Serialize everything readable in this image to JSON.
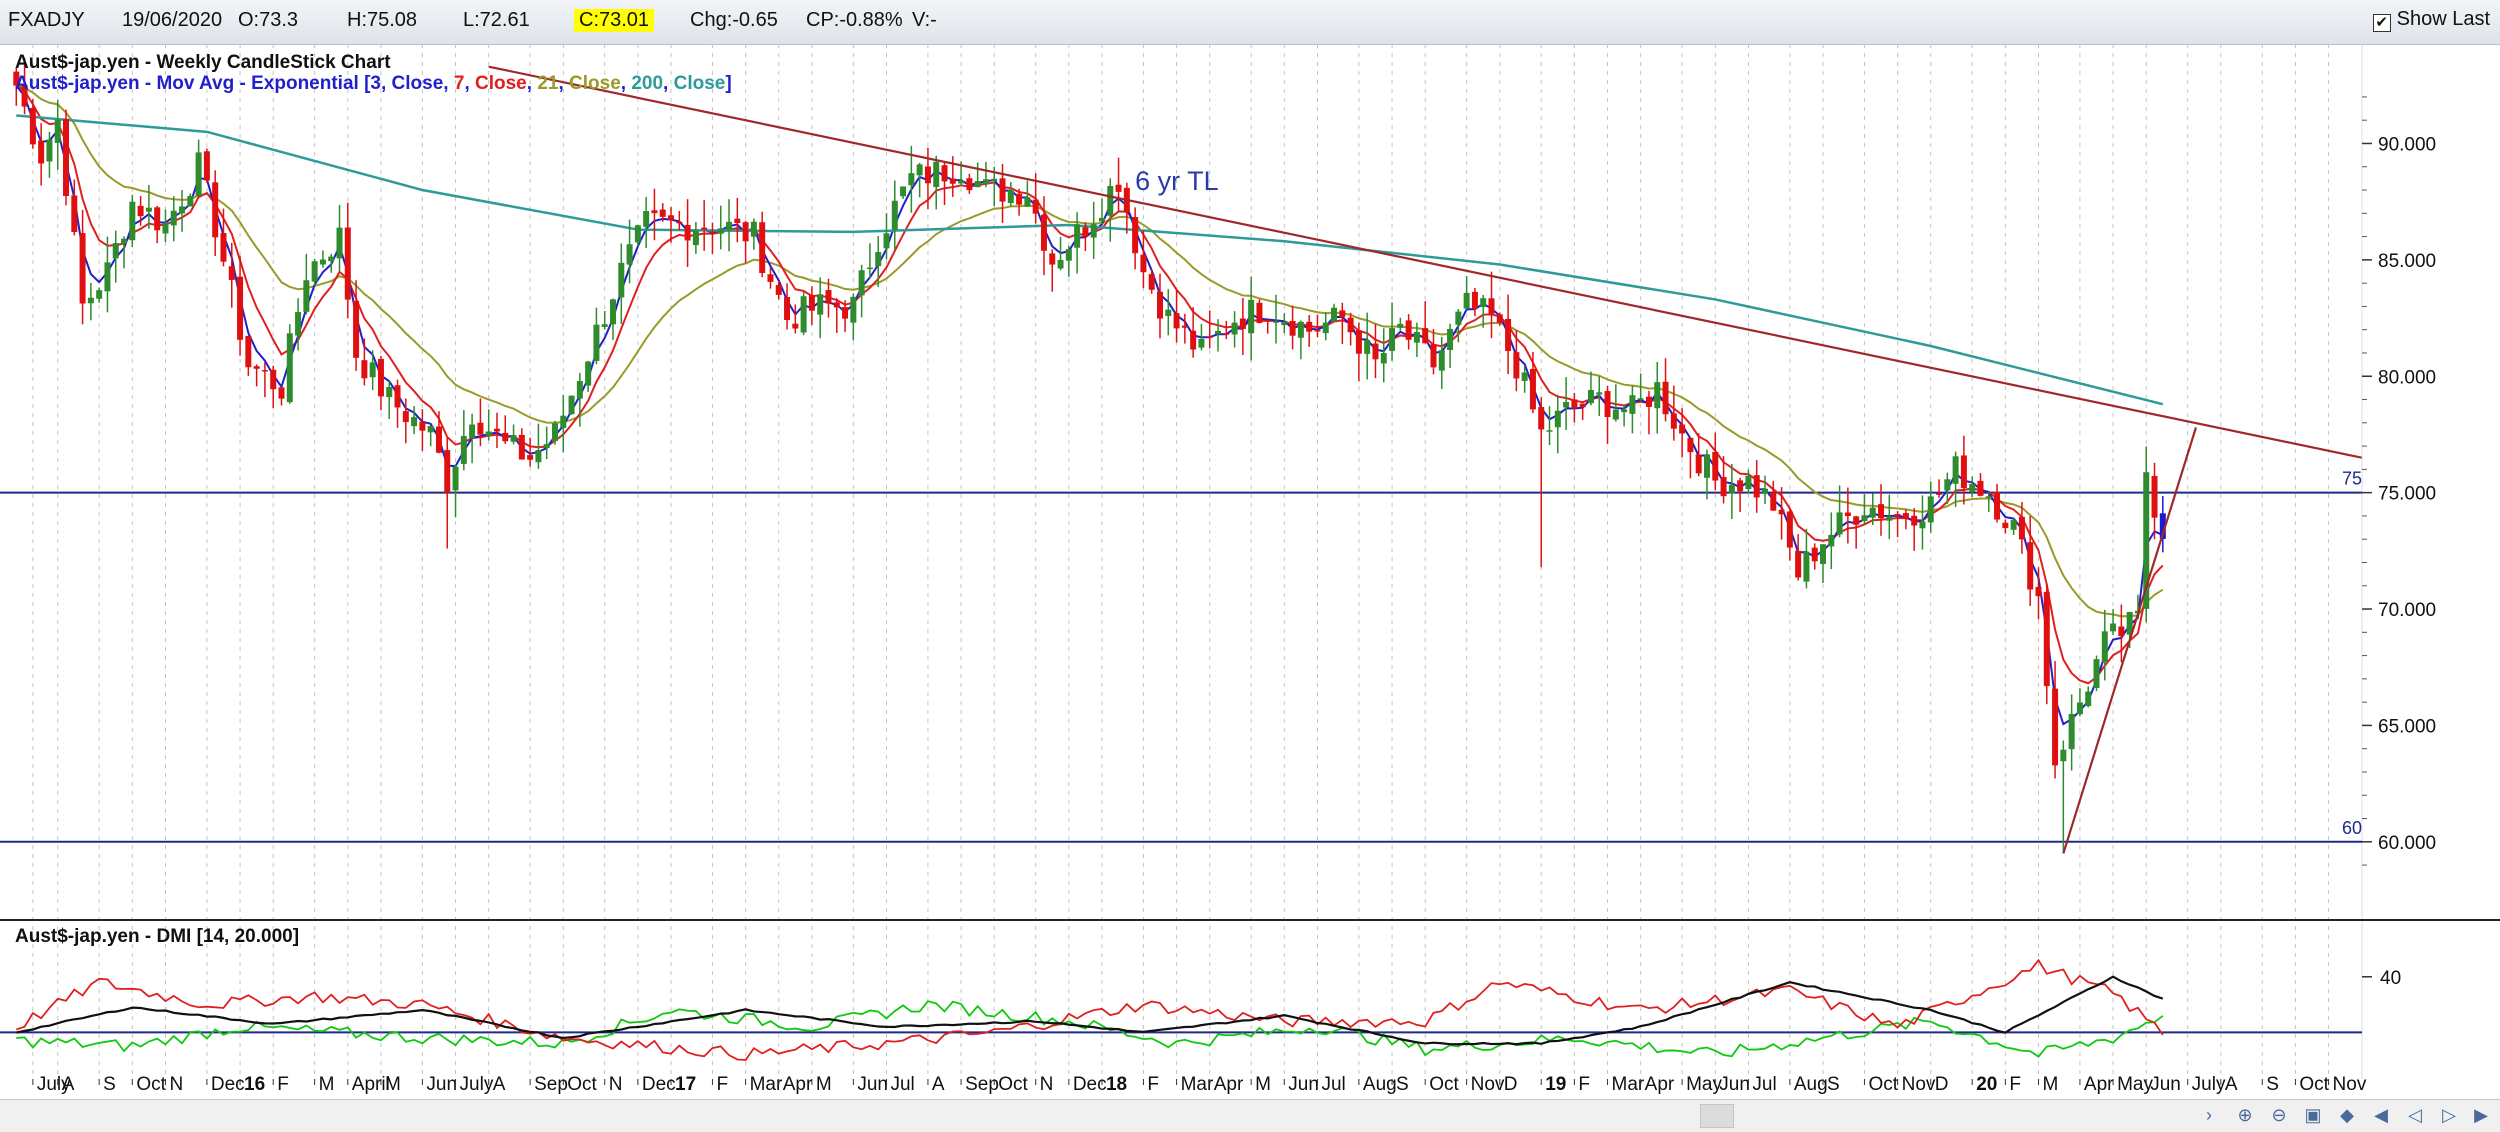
{
  "toolbar": {
    "symbol": "FXADJY",
    "date": "19/06/2020",
    "open": "O:73.3",
    "high": "H:75.08",
    "low": "L:72.61",
    "close": "C:73.01",
    "change": "Chg:-0.65",
    "change_pct": "CP:-0.88%",
    "volume": "V:-",
    "show_last": "Show Last",
    "show_last_checked": true
  },
  "colors": {
    "up_candle": "#2e8b2e",
    "down_candle": "#e01010",
    "last_candle": "#1a1ad0",
    "ema3": "#1f1fcc",
    "ema7": "#e02020",
    "ema21": "#9a9a2a",
    "ema200": "#2e9a9a",
    "trendline": "#a0282a",
    "hline": "#1f2a8a",
    "dmi_plus": "#10c810",
    "dmi_minus": "#e02020",
    "adx": "#111111"
  },
  "chart_data": [
    {
      "type": "candlestick",
      "title": "Aust$-jap.yen - Weekly CandleStick Chart",
      "legend": {
        "prefix": "Aust$-jap.yen - Mov Avg - Exponential [",
        "items": [
          {
            "text": "3",
            "color": "#1f1fcc"
          },
          {
            "text": ", ",
            "color": "#1f1fcc"
          },
          {
            "text": "Close",
            "color": "#1f1fcc"
          },
          {
            "text": ", ",
            "color": "#1f1fcc"
          },
          {
            "text": "7",
            "color": "#e02020"
          },
          {
            "text": ", ",
            "color": "#1f1fcc"
          },
          {
            "text": "Close",
            "color": "#e02020"
          },
          {
            "text": ", ",
            "color": "#1f1fcc"
          },
          {
            "text": "21",
            "color": "#9a9a2a"
          },
          {
            "text": ", ",
            "color": "#1f1fcc"
          },
          {
            "text": "Close",
            "color": "#9a9a2a"
          },
          {
            "text": ", ",
            "color": "#1f1fcc"
          },
          {
            "text": "200",
            "color": "#2e9a9a"
          },
          {
            "text": ", ",
            "color": "#1f1fcc"
          },
          {
            "text": "Close",
            "color": "#2e9a9a"
          },
          {
            "text": "]",
            "color": "#1f1fcc"
          }
        ]
      },
      "ylim": [
        57.5,
        93.5
      ],
      "yticks": [
        "90.000",
        "85.000",
        "80.000",
        "75.000",
        "70.000",
        "65.000",
        "60.000"
      ],
      "ytick_values": [
        90,
        85,
        80,
        75,
        70,
        65,
        60
      ],
      "grid": true,
      "horizontal_lines": [
        {
          "value": 75,
          "label": "75"
        },
        {
          "value": 60,
          "label": "60"
        }
      ],
      "annotation": "6 yr TL",
      "price_path": [
        [
          "2015-06-29",
          92.5
        ],
        [
          "2015-07-20",
          89.5
        ],
        [
          "2015-08-03",
          91.0
        ],
        [
          "2015-08-24",
          83.0
        ],
        [
          "2015-09-14",
          84.5
        ],
        [
          "2015-10-05",
          87.5
        ],
        [
          "2015-11-02",
          86.5
        ],
        [
          "2015-11-30",
          89.0
        ],
        [
          "2015-12-14",
          86.5
        ],
        [
          "2016-01-11",
          80.5
        ],
        [
          "2016-02-08",
          79.5
        ],
        [
          "2016-02-29",
          84.5
        ],
        [
          "2016-03-28",
          86.0
        ],
        [
          "2016-04-11",
          81.0
        ],
        [
          "2016-05-09",
          79.0
        ],
        [
          "2016-06-13",
          77.5
        ],
        [
          "2016-06-27",
          75.5
        ],
        [
          "2016-07-18",
          78.5
        ],
        [
          "2016-08-15",
          77.0
        ],
        [
          "2016-09-05",
          76.5
        ],
        [
          "2016-09-26",
          77.5
        ],
        [
          "2016-10-24",
          81.0
        ],
        [
          "2016-11-21",
          84.5
        ],
        [
          "2016-12-12",
          86.5
        ],
        [
          "2017-01-16",
          86.5
        ],
        [
          "2017-02-13",
          86.5
        ],
        [
          "2017-03-13",
          86.0
        ],
        [
          "2017-04-10",
          82.5
        ],
        [
          "2017-05-08",
          83.0
        ],
        [
          "2017-06-05",
          83.0
        ],
        [
          "2017-06-26",
          86.0
        ],
        [
          "2017-07-24",
          88.5
        ],
        [
          "2017-09-04",
          89.0
        ],
        [
          "2017-09-25",
          88.0
        ],
        [
          "2017-10-30",
          88.0
        ],
        [
          "2017-11-20",
          85.0
        ],
        [
          "2017-12-18",
          86.5
        ],
        [
          "2018-01-15",
          88.5
        ],
        [
          "2018-02-05",
          84.5
        ],
        [
          "2018-02-26",
          82.5
        ],
        [
          "2018-03-26",
          81.0
        ],
        [
          "2018-04-23",
          82.5
        ],
        [
          "2018-05-21",
          83.0
        ],
        [
          "2018-06-25",
          82.0
        ],
        [
          "2018-07-23",
          82.5
        ],
        [
          "2018-08-20",
          80.5
        ],
        [
          "2018-09-10",
          82.0
        ],
        [
          "2018-10-08",
          80.5
        ],
        [
          "2018-11-05",
          83.0
        ],
        [
          "2018-11-26",
          82.5
        ],
        [
          "2018-12-17",
          80.5
        ],
        [
          "2019-01-07",
          77.5
        ],
        [
          "2019-01-28",
          78.5
        ],
        [
          "2019-02-25",
          79.0
        ],
        [
          "2019-03-25",
          78.5
        ],
        [
          "2019-04-15",
          79.5
        ],
        [
          "2019-05-06",
          77.5
        ],
        [
          "2019-06-03",
          75.5
        ],
        [
          "2019-07-01",
          75.5
        ],
        [
          "2019-07-22",
          74.5
        ],
        [
          "2019-08-12",
          71.5
        ],
        [
          "2019-09-02",
          73.0
        ],
        [
          "2019-10-07",
          74.5
        ],
        [
          "2019-11-04",
          74.0
        ],
        [
          "2019-12-02",
          74.5
        ],
        [
          "2019-12-23",
          76.0
        ],
        [
          "2020-01-20",
          75.0
        ],
        [
          "2020-02-10",
          73.5
        ],
        [
          "2020-03-02",
          70.5
        ],
        [
          "2020-03-16",
          63.5
        ],
        [
          "2020-04-06",
          66.0
        ],
        [
          "2020-04-27",
          68.5
        ],
        [
          "2020-05-25",
          69.5
        ],
        [
          "2020-06-01",
          76.0
        ],
        [
          "2020-06-15",
          73.01
        ]
      ],
      "x_ticks": [
        {
          "label": "July",
          "date": "2015-07-13"
        },
        {
          "label": "A",
          "date": "2015-08-03"
        },
        {
          "label": "S",
          "date": "2015-09-07"
        },
        {
          "label": "Oct",
          "date": "2015-10-05"
        },
        {
          "label": "N",
          "date": "2015-11-02"
        },
        {
          "label": "Dec",
          "date": "2015-12-07"
        },
        {
          "label": "16",
          "date": "2016-01-04",
          "bold": true
        },
        {
          "label": "F",
          "date": "2016-02-01"
        },
        {
          "label": "M",
          "date": "2016-03-07"
        },
        {
          "label": "April",
          "date": "2016-04-04"
        },
        {
          "label": "M",
          "date": "2016-05-02"
        },
        {
          "label": "Jun",
          "date": "2016-06-06"
        },
        {
          "label": "July",
          "date": "2016-07-04"
        },
        {
          "label": "A",
          "date": "2016-08-01"
        },
        {
          "label": "Sep",
          "date": "2016-09-05"
        },
        {
          "label": "Oct",
          "date": "2016-10-03"
        },
        {
          "label": "N",
          "date": "2016-11-07"
        },
        {
          "label": "Dec",
          "date": "2016-12-05"
        },
        {
          "label": "17",
          "date": "2017-01-02",
          "bold": true
        },
        {
          "label": "F",
          "date": "2017-02-06"
        },
        {
          "label": "Mar",
          "date": "2017-03-06"
        },
        {
          "label": "Apr",
          "date": "2017-04-03"
        },
        {
          "label": "M",
          "date": "2017-05-01"
        },
        {
          "label": "Jun",
          "date": "2017-06-05"
        },
        {
          "label": "Jul",
          "date": "2017-07-03"
        },
        {
          "label": "A",
          "date": "2017-08-07"
        },
        {
          "label": "Sep",
          "date": "2017-09-04"
        },
        {
          "label": "Oct",
          "date": "2017-10-02"
        },
        {
          "label": "N",
          "date": "2017-11-06"
        },
        {
          "label": "Dec",
          "date": "2017-12-04"
        },
        {
          "label": "18",
          "date": "2018-01-01",
          "bold": true
        },
        {
          "label": "F",
          "date": "2018-02-05"
        },
        {
          "label": "Mar",
          "date": "2018-03-05"
        },
        {
          "label": "Apr",
          "date": "2018-04-02"
        },
        {
          "label": "M",
          "date": "2018-05-07"
        },
        {
          "label": "Jun",
          "date": "2018-06-04"
        },
        {
          "label": "Jul",
          "date": "2018-07-02"
        },
        {
          "label": "Aug",
          "date": "2018-08-06"
        },
        {
          "label": "S",
          "date": "2018-09-03"
        },
        {
          "label": "Oct",
          "date": "2018-10-01"
        },
        {
          "label": "Nov",
          "date": "2018-11-05"
        },
        {
          "label": "D",
          "date": "2018-12-03"
        },
        {
          "label": "19",
          "date": "2019-01-07",
          "bold": true
        },
        {
          "label": "F",
          "date": "2019-02-04"
        },
        {
          "label": "Mar",
          "date": "2019-03-04"
        },
        {
          "label": "Apr",
          "date": "2019-04-01"
        },
        {
          "label": "May",
          "date": "2019-05-06"
        },
        {
          "label": "Jun",
          "date": "2019-06-03"
        },
        {
          "label": "Jul",
          "date": "2019-07-01"
        },
        {
          "label": "Aug",
          "date": "2019-08-05"
        },
        {
          "label": "S",
          "date": "2019-09-02"
        },
        {
          "label": "Oct",
          "date": "2019-10-07"
        },
        {
          "label": "Nov",
          "date": "2019-11-04"
        },
        {
          "label": "D",
          "date": "2019-12-02"
        },
        {
          "label": "20",
          "date": "2020-01-06",
          "bold": true
        },
        {
          "label": "F",
          "date": "2020-02-03"
        },
        {
          "label": "M",
          "date": "2020-03-02"
        },
        {
          "label": "Apr",
          "date": "2020-04-06"
        },
        {
          "label": "May",
          "date": "2020-05-04"
        },
        {
          "label": "Jun",
          "date": "2020-06-01"
        },
        {
          "label": "July",
          "date": "2020-07-06"
        },
        {
          "label": "A",
          "date": "2020-08-03"
        },
        {
          "label": "S",
          "date": "2020-09-07"
        },
        {
          "label": "Oct",
          "date": "2020-10-05"
        },
        {
          "label": "Nov",
          "date": "2020-11-02"
        }
      ],
      "ema200_path": [
        [
          "2015-06-29",
          91.2
        ],
        [
          "2015-12-07",
          90.5
        ],
        [
          "2016-06-06",
          88.0
        ],
        [
          "2016-12-05",
          86.3
        ],
        [
          "2017-06-05",
          86.2
        ],
        [
          "2017-12-04",
          86.5
        ],
        [
          "2018-06-04",
          85.8
        ],
        [
          "2018-12-03",
          84.8
        ],
        [
          "2019-06-03",
          83.3
        ],
        [
          "2019-12-02",
          81.3
        ],
        [
          "2020-06-15",
          78.8
        ]
      ],
      "trendlines": [
        {
          "name": "6 yr TL",
          "from": [
            "2016-08-01",
            93.3
          ],
          "to": [
            "2020-11-30",
            76.5
          ]
        },
        {
          "from": [
            "2020-03-23",
            59.5
          ],
          "to": [
            "2020-07-13",
            77.8
          ]
        }
      ]
    },
    {
      "type": "line",
      "title": "Aust$-jap.yen - DMI [14, 20.000]",
      "ylim": [
        5,
        50
      ],
      "yticks": [
        "40"
      ],
      "ytick_values": [
        40
      ],
      "horizontal_lines": [
        {
          "value": 20
        }
      ],
      "series": [
        {
          "key": "plus_di",
          "color": "#10c810",
          "values": [
            [
              "2015-06-29",
              17
            ],
            [
              "2015-10-05",
              15
            ],
            [
              "2016-01-04",
              22
            ],
            [
              "2016-06-06",
              18
            ],
            [
              "2016-10-03",
              16
            ],
            [
              "2017-01-02",
              28
            ],
            [
              "2017-05-01",
              22
            ],
            [
              "2017-08-07",
              30
            ],
            [
              "2017-12-04",
              24
            ],
            [
              "2018-03-05",
              16
            ],
            [
              "2018-07-02",
              22
            ],
            [
              "2018-10-01",
              14
            ],
            [
              "2019-02-04",
              18
            ],
            [
              "2019-06-03",
              12
            ],
            [
              "2019-09-02",
              18
            ],
            [
              "2019-12-02",
              24
            ],
            [
              "2020-03-02",
              12
            ],
            [
              "2020-05-04",
              18
            ],
            [
              "2020-06-15",
              26
            ]
          ]
        },
        {
          "key": "minus_di",
          "color": "#e02020",
          "values": [
            [
              "2015-06-29",
              22
            ],
            [
              "2015-09-07",
              38
            ],
            [
              "2015-12-07",
              30
            ],
            [
              "2016-03-07",
              33
            ],
            [
              "2016-06-06",
              30
            ],
            [
              "2016-10-03",
              18
            ],
            [
              "2017-03-06",
              12
            ],
            [
              "2017-07-03",
              16
            ],
            [
              "2017-10-02",
              20
            ],
            [
              "2018-02-05",
              30
            ],
            [
              "2018-06-04",
              24
            ],
            [
              "2018-10-01",
              24
            ],
            [
              "2018-12-03",
              38
            ],
            [
              "2019-04-01",
              28
            ],
            [
              "2019-08-05",
              35
            ],
            [
              "2019-11-04",
              22
            ],
            [
              "2020-03-02",
              44
            ],
            [
              "2020-05-04",
              34
            ],
            [
              "2020-06-15",
              20
            ]
          ]
        },
        {
          "key": "adx",
          "color": "#111111",
          "values": [
            [
              "2015-06-29",
              20
            ],
            [
              "2015-10-05",
              29
            ],
            [
              "2016-02-01",
              23
            ],
            [
              "2016-06-06",
              28
            ],
            [
              "2016-10-03",
              18
            ],
            [
              "2017-03-06",
              28
            ],
            [
              "2017-07-03",
              22
            ],
            [
              "2017-11-06",
              24
            ],
            [
              "2018-02-05",
              20
            ],
            [
              "2018-06-04",
              26
            ],
            [
              "2018-10-01",
              16
            ],
            [
              "2019-01-07",
              16
            ],
            [
              "2019-04-01",
              22
            ],
            [
              "2019-08-05",
              38
            ],
            [
              "2019-12-02",
              28
            ],
            [
              "2020-02-03",
              20
            ],
            [
              "2020-05-04",
              40
            ],
            [
              "2020-06-15",
              32
            ]
          ]
        }
      ]
    }
  ]
}
